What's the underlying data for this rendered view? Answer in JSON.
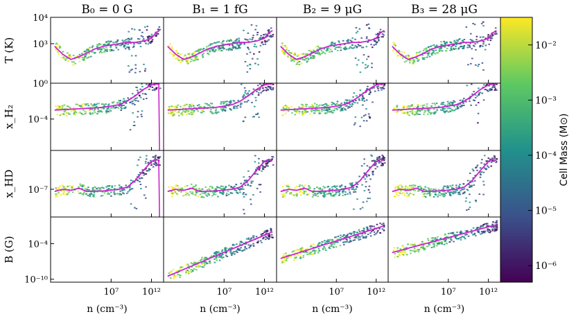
{
  "chart_data": {
    "type": "scatter",
    "description_style": "phase-space cell-mass histograms with median line",
    "columns": [
      {
        "name": "B0",
        "title": "B₀ = 0 G",
        "has_field": false,
        "collapse": true
      },
      {
        "name": "B1",
        "title": "B₁ = 1 fG",
        "has_field": true,
        "collapse": false
      },
      {
        "name": "B2",
        "title": "B₂ = 9 μG",
        "has_field": true,
        "collapse": false
      },
      {
        "name": "B3",
        "title": "B₃ = 28 μG",
        "has_field": true,
        "collapse": false
      }
    ],
    "x_axis": {
      "label": "n (cm⁻³)",
      "scale": "log",
      "range_log10": [
        -0.5,
        13.5
      ],
      "ticks": [
        {
          "log": 7,
          "label": "10⁷"
        },
        {
          "log": 12,
          "label": "10¹²"
        }
      ]
    },
    "rows": [
      {
        "name": "temperature",
        "ylabel": "T (K)",
        "ylim_log10": [
          1.5,
          4.0
        ],
        "ticks": [
          {
            "log": 3,
            "label": "10³"
          },
          {
            "log": 4,
            "label": "10⁴"
          }
        ],
        "median_x": [
          0,
          1,
          2,
          3,
          4,
          5,
          6,
          7,
          8,
          9,
          10,
          11,
          12,
          12.5,
          13
        ],
        "median_y": [
          2.9,
          2.6,
          2.4,
          2.5,
          2.65,
          2.8,
          2.9,
          2.95,
          3.0,
          3.05,
          3.05,
          3.1,
          3.2,
          3.4,
          3.5
        ]
      },
      {
        "name": "x_H2",
        "ylabel": "x_H₂",
        "ylim_log10": [
          -7.5,
          0.0
        ],
        "ticks": [
          {
            "log": -4,
            "label": "10⁻⁴"
          },
          {
            "log": 0,
            "label": "10⁰"
          }
        ],
        "median_x": [
          0,
          2,
          4,
          6,
          8,
          9,
          10,
          11,
          12,
          12.5,
          13
        ],
        "median_y": [
          -3.0,
          -2.9,
          -2.8,
          -2.7,
          -2.4,
          -2.0,
          -1.4,
          -0.7,
          -0.2,
          -0.1,
          -0.1
        ]
      },
      {
        "name": "x_HD",
        "ylabel": "x_HD",
        "ylim_log10": [
          -9.5,
          -3.5
        ],
        "ticks": [
          {
            "log": -7,
            "label": "10⁻⁷"
          }
        ],
        "median_x": [
          0,
          1,
          2,
          3,
          4,
          6,
          8,
          9,
          10,
          11,
          12,
          12.5,
          13
        ],
        "median_y": [
          -7.2,
          -7.0,
          -7.1,
          -6.9,
          -7.2,
          -7.15,
          -7.0,
          -6.8,
          -6.2,
          -5.3,
          -4.5,
          -4.3,
          -4.4
        ]
      },
      {
        "name": "B_field",
        "ylabel": "B (G)",
        "ylim_log10": [
          -10.5,
          0.5
        ],
        "ticks": [
          {
            "log": -10,
            "label": "10⁻¹⁰"
          },
          {
            "log": -4,
            "label": "10⁻⁴"
          }
        ],
        "median_offsets_log10": {
          "B1": [
            -9.5,
            -2.0
          ],
          "B2": [
            -6.5,
            -1.0
          ],
          "B3": [
            -5.5,
            -0.8
          ]
        }
      }
    ],
    "colorbar": {
      "label": "Cell Mass (M⊙)",
      "scale": "log",
      "range_log10": [
        -6.3,
        -1.5
      ],
      "ticks": [
        {
          "log": -6,
          "label": "10⁻⁶"
        },
        {
          "log": -5,
          "label": "10⁻⁵"
        },
        {
          "log": -4,
          "label": "10⁻⁴"
        },
        {
          "log": -3,
          "label": "10⁻³"
        },
        {
          "log": -2,
          "label": "10⁻²"
        }
      ],
      "colors": [
        "#440154",
        "#3b528b",
        "#21918c",
        "#5ec962",
        "#fde725"
      ]
    },
    "median_line_color": "#cc22cc"
  }
}
